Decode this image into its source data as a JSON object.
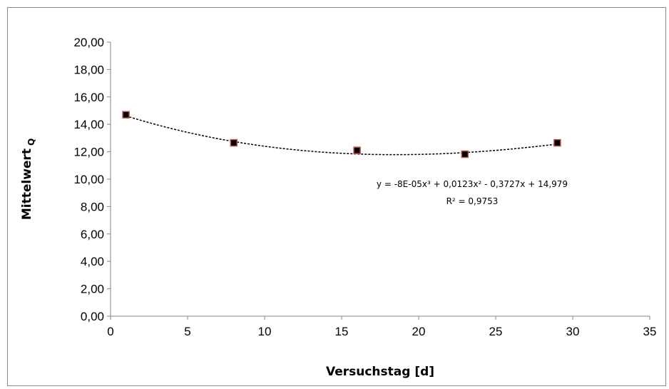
{
  "chart_data": {
    "type": "scatter",
    "title": "",
    "xlabel": "Versuchstag [d]",
    "ylabel": "Mittelwert",
    "ylabel_subscript": "Q",
    "xlim": [
      0,
      35
    ],
    "ylim": [
      0,
      20
    ],
    "x_ticks": [
      0,
      5,
      10,
      15,
      20,
      25,
      30,
      35
    ],
    "x_tick_labels": [
      "0",
      "5",
      "10",
      "15",
      "20",
      "25",
      "30",
      "35"
    ],
    "y_ticks": [
      0,
      2,
      4,
      6,
      8,
      10,
      12,
      14,
      16,
      18,
      20
    ],
    "y_tick_labels": [
      "0,00",
      "2,00",
      "4,00",
      "6,00",
      "8,00",
      "10,00",
      "12,00",
      "14,00",
      "16,00",
      "18,00",
      "20,00"
    ],
    "grid": false,
    "legend": "none",
    "series": [
      {
        "x": [
          1,
          8,
          16,
          23,
          29
        ],
        "y": [
          14.7,
          12.65,
          12.1,
          11.82,
          12.65
        ],
        "marker": "square",
        "marker_fill": "#000000",
        "marker_edge": "#c0504d"
      }
    ],
    "trendline": {
      "kind": "polynomial",
      "order": 3,
      "coefficients": [
        -8e-05,
        0.0123,
        -0.3727,
        14.979
      ],
      "x_range": [
        1,
        29
      ],
      "style": "dashed",
      "color": "#000000"
    },
    "annotations": {
      "equation": "y = -8E-05x³ + 0,0123x² - 0,3727x + 14,979",
      "r_squared": "R² = 0,9753"
    }
  }
}
